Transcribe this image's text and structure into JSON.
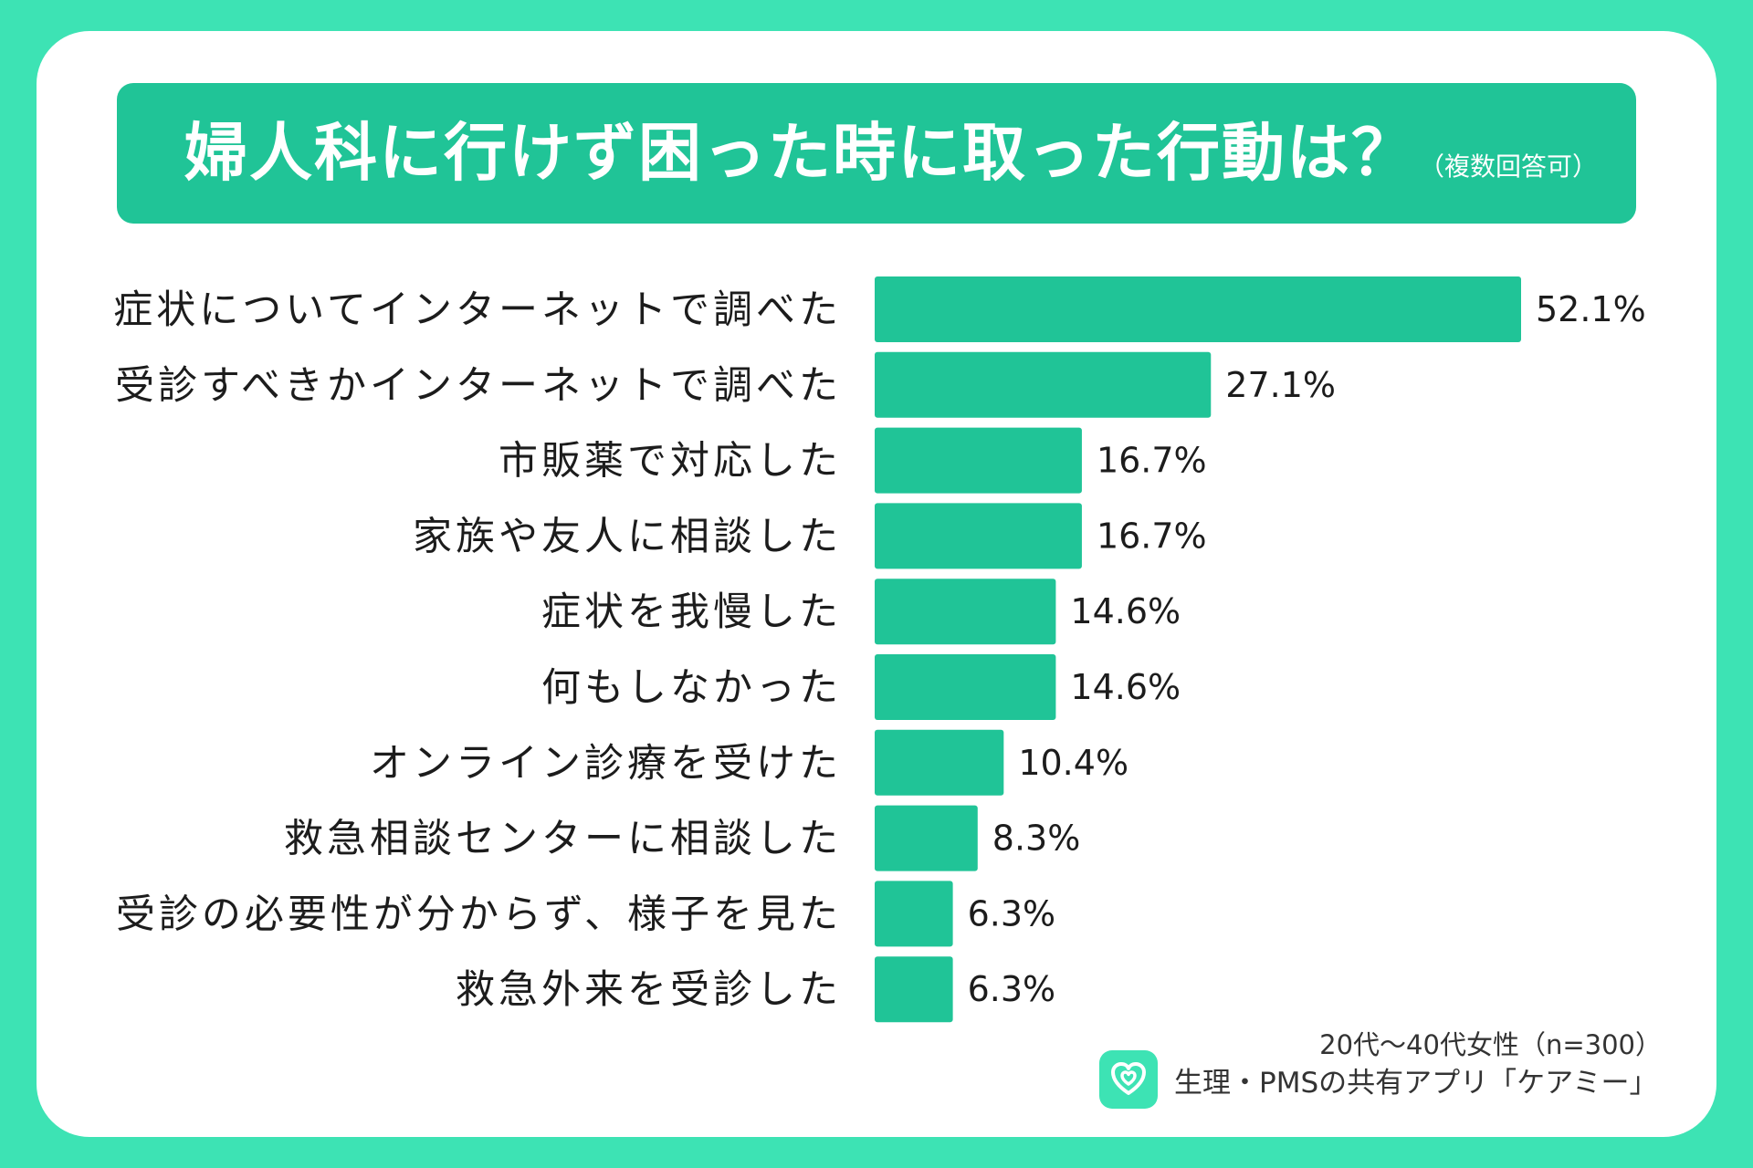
{
  "title": {
    "main": "婦人科に行けず困った時に取った行動は？",
    "note": "（複数回答可）"
  },
  "colors": {
    "background": "#3de3b4",
    "banner": "#20c497",
    "bar": "#20c497"
  },
  "chart_data": {
    "type": "bar",
    "orientation": "horizontal",
    "title": "婦人科に行けず困った時に取った行動は？（複数回答可）",
    "xlabel": "",
    "ylabel": "",
    "unit": "%",
    "categories": [
      "症状についてインターネットで調べた",
      "受診すべきかインターネットで調べた",
      "市販薬で対応した",
      "家族や友人に相談した",
      "症状を我慢した",
      "何もしなかった",
      "オンライン診療を受けた",
      "救急相談センターに相談した",
      "受診の必要性が分からず、様子を見た",
      "救急外来を受診した"
    ],
    "values": [
      52.1,
      27.1,
      16.7,
      16.7,
      14.6,
      14.6,
      10.4,
      8.3,
      6.3,
      6.3
    ],
    "value_labels": [
      "52.1%",
      "27.1%",
      "16.7%",
      "16.7%",
      "14.6%",
      "14.6%",
      "10.4%",
      "8.3%",
      "6.3%",
      "6.3%"
    ],
    "xlim": [
      0,
      52.1
    ]
  },
  "footer": {
    "sample": "20代〜40代女性（n=300）",
    "brand": "生理・PMSの共有アプリ「ケアミー」",
    "brand_icon": "heart-icon"
  }
}
